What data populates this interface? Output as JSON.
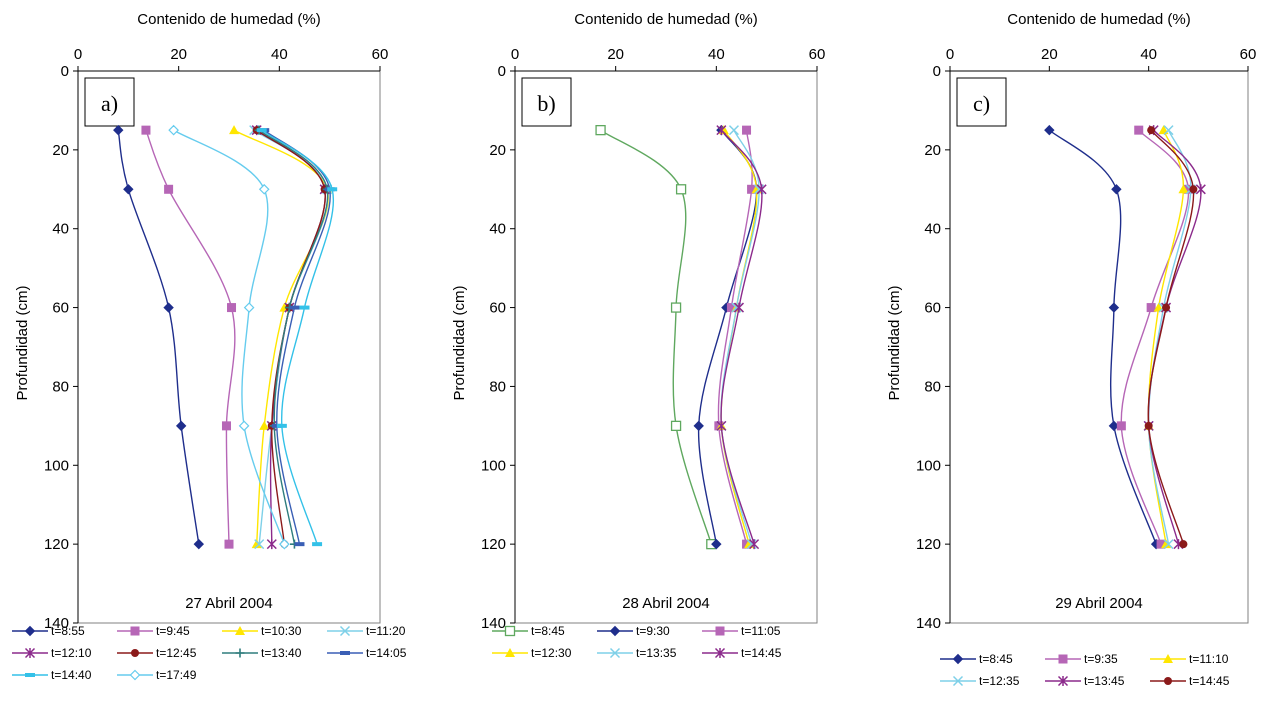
{
  "chart_data": [
    {
      "type": "line",
      "panel_label": "a)",
      "date": "27 Abril 2004",
      "xlabel": "Contenido de humedad (%)",
      "ylabel": "Profundidad (cm)",
      "xlim": [
        0,
        60
      ],
      "ylim": [
        0,
        140
      ],
      "y_inverted": true,
      "x_axis_position": "top",
      "xticks": [
        0,
        20,
        40,
        60
      ],
      "yticks": [
        0,
        20,
        40,
        60,
        80,
        100,
        120,
        140
      ],
      "depths": [
        15,
        30,
        60,
        90,
        120
      ],
      "series": [
        {
          "name": "t=8:55",
          "color": "#1F2E8C",
          "marker": "diamond",
          "values": [
            8,
            10,
            18,
            20.5,
            24
          ]
        },
        {
          "name": "t=9:45",
          "color": "#B666B6",
          "marker": "square",
          "values": [
            13.5,
            18,
            30.5,
            29.5,
            30
          ]
        },
        {
          "name": "t=10:30",
          "color": "#FFE600",
          "marker": "triangle",
          "values": [
            31,
            49.5,
            41,
            37,
            35.5
          ]
        },
        {
          "name": "t=11:20",
          "color": "#7ED0E8",
          "marker": "x",
          "values": [
            35,
            49.5,
            42,
            38.5,
            36
          ]
        },
        {
          "name": "t=12:10",
          "color": "#8B2A8B",
          "marker": "star",
          "values": [
            35.5,
            49,
            42,
            38.5,
            38.5
          ]
        },
        {
          "name": "t=12:45",
          "color": "#8B1A1A",
          "marker": "circle",
          "values": [
            35.5,
            49,
            42,
            38.5,
            41
          ]
        },
        {
          "name": "t=13:40",
          "color": "#2E7D7D",
          "marker": "plus",
          "values": [
            36,
            49.5,
            42,
            39,
            43
          ]
        },
        {
          "name": "t=14:05",
          "color": "#3A5FB5",
          "marker": "dash",
          "values": [
            37,
            50,
            43,
            39.5,
            44
          ]
        },
        {
          "name": "t=14:40",
          "color": "#33C1E8",
          "marker": "dash",
          "values": [
            36.5,
            50.5,
            45,
            40.5,
            47.5
          ]
        },
        {
          "name": "t=17:49",
          "color": "#66CCEE",
          "marker": "diamond-open",
          "values": [
            19,
            37,
            34,
            33,
            41
          ]
        }
      ],
      "legend_rows": [
        [
          "t=8:55",
          "t=9:45",
          "t=10:30",
          "t=11:20"
        ],
        [
          "t=12:10",
          "t=12:45",
          "t=13:40",
          "t=14:05"
        ],
        [
          "t=14:40",
          "t=17:49"
        ]
      ]
    },
    {
      "type": "line",
      "panel_label": "b)",
      "date": "28  Abril 2004",
      "xlabel": "Contenido de humedad (%)",
      "ylabel": "Profundidad (cm)",
      "xlim": [
        0,
        60
      ],
      "ylim": [
        0,
        140
      ],
      "y_inverted": true,
      "x_axis_position": "top",
      "xticks": [
        0,
        20,
        40,
        60
      ],
      "yticks": [
        0,
        20,
        40,
        60,
        80,
        100,
        120,
        140
      ],
      "depths": [
        15,
        30,
        60,
        90,
        120
      ],
      "series": [
        {
          "name": "t=8:45",
          "color": "#5FA85F",
          "marker": "square-open",
          "values": [
            17,
            33,
            32,
            32,
            39
          ]
        },
        {
          "name": "t=9:30",
          "color": "#1F2E8C",
          "marker": "diamond",
          "values": [
            41,
            48,
            42,
            36.5,
            40
          ]
        },
        {
          "name": "t=11:05",
          "color": "#B666B6",
          "marker": "square",
          "values": [
            46,
            47,
            43,
            40.5,
            46
          ]
        },
        {
          "name": "t=12:30",
          "color": "#FFE600",
          "marker": "triangle",
          "values": [
            41.5,
            48,
            44,
            41,
            46.5
          ]
        },
        {
          "name": "t=13:35",
          "color": "#7ED0E8",
          "marker": "x",
          "values": [
            43.5,
            48.5,
            44,
            41,
            47
          ]
        },
        {
          "name": "t=14:45",
          "color": "#8B2A8B",
          "marker": "star",
          "values": [
            41,
            49,
            44.5,
            41,
            47.5
          ]
        }
      ],
      "legend_rows": [
        [
          "t=8:45",
          "t=9:30",
          "t=11:05"
        ],
        [
          "t=12:30",
          "t=13:35",
          "t=14:45"
        ]
      ]
    },
    {
      "type": "line",
      "panel_label": "c)",
      "date": "29  Abril 2004",
      "xlabel": "Contenido de humedad (%)",
      "ylabel": "Profundidad (cm)",
      "xlim": [
        0,
        60
      ],
      "ylim": [
        0,
        140
      ],
      "y_inverted": true,
      "x_axis_position": "top",
      "xticks": [
        0,
        20,
        40,
        60
      ],
      "yticks": [
        0,
        20,
        40,
        60,
        80,
        100,
        120,
        140
      ],
      "depths": [
        15,
        30,
        60,
        90,
        120
      ],
      "series": [
        {
          "name": "t=8:45",
          "color": "#1F2E8C",
          "marker": "diamond",
          "values": [
            20,
            33.5,
            33,
            33,
            41.5
          ]
        },
        {
          "name": "t=9:35",
          "color": "#B666B6",
          "marker": "square",
          "values": [
            38,
            48,
            40.5,
            34.5,
            42.5
          ]
        },
        {
          "name": "t=11:10",
          "color": "#FFE600",
          "marker": "triangle",
          "values": [
            43,
            47,
            42,
            40,
            43.5
          ]
        },
        {
          "name": "t=12:35",
          "color": "#7ED0E8",
          "marker": "x",
          "values": [
            44,
            48.5,
            43,
            40,
            44
          ]
        },
        {
          "name": "t=13:45",
          "color": "#8B2A8B",
          "marker": "star",
          "values": [
            41,
            50.5,
            43.5,
            40,
            46
          ]
        },
        {
          "name": "t=14:45",
          "color": "#8B1A1A",
          "marker": "circle",
          "values": [
            40.5,
            49,
            43.5,
            40,
            47
          ]
        }
      ],
      "legend_rows": [
        [
          "t=8:45",
          "t=9:35",
          "t=11:10"
        ],
        [
          "t=12:35",
          "t=13:45",
          "t=14:45"
        ]
      ]
    }
  ]
}
